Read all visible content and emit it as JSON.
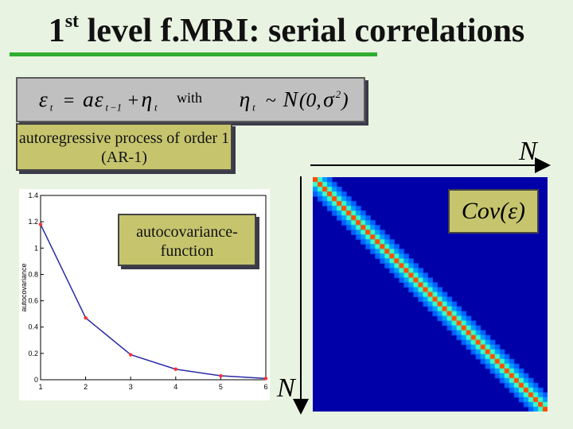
{
  "title": {
    "prefix": "1",
    "superscript": "st",
    "rest": " level f.MRI: serial correlations"
  },
  "equation": {
    "lhs": "εt = aεt−1 + ηt",
    "with": "with",
    "rhs": "ηt ~ N(0, σ2)"
  },
  "ar_note": "autoregressive process of order 1 (AR-1)",
  "acv_note": "autocovariance-function",
  "cov_label": "Cov(ε)",
  "n_top": "N",
  "n_side": "N",
  "colors": {
    "background": "#e9f3e2",
    "title_underline": "#2fae2f",
    "note_fill": "#c6c56e",
    "curve": "#2a2aa8",
    "markers": "#ff3030",
    "matrix_bg": "#0000a8"
  },
  "chart_data": {
    "type": "line",
    "x": [
      1,
      2,
      3,
      4,
      5,
      6
    ],
    "series": [
      {
        "values": [
          1.18,
          0.47,
          0.19,
          0.08,
          0.03,
          0.01
        ]
      }
    ],
    "xlabel": "",
    "ylabel": "autocovariance",
    "xlim": [
      1,
      6
    ],
    "ylim": [
      0,
      1.4
    ],
    "xticks": [
      "1",
      "2",
      "3",
      "4",
      "5",
      "6"
    ],
    "yticks": [
      "0",
      "0.2",
      "0.4",
      "0.6",
      "0.8",
      "1",
      "1.2",
      "1.4"
    ]
  }
}
